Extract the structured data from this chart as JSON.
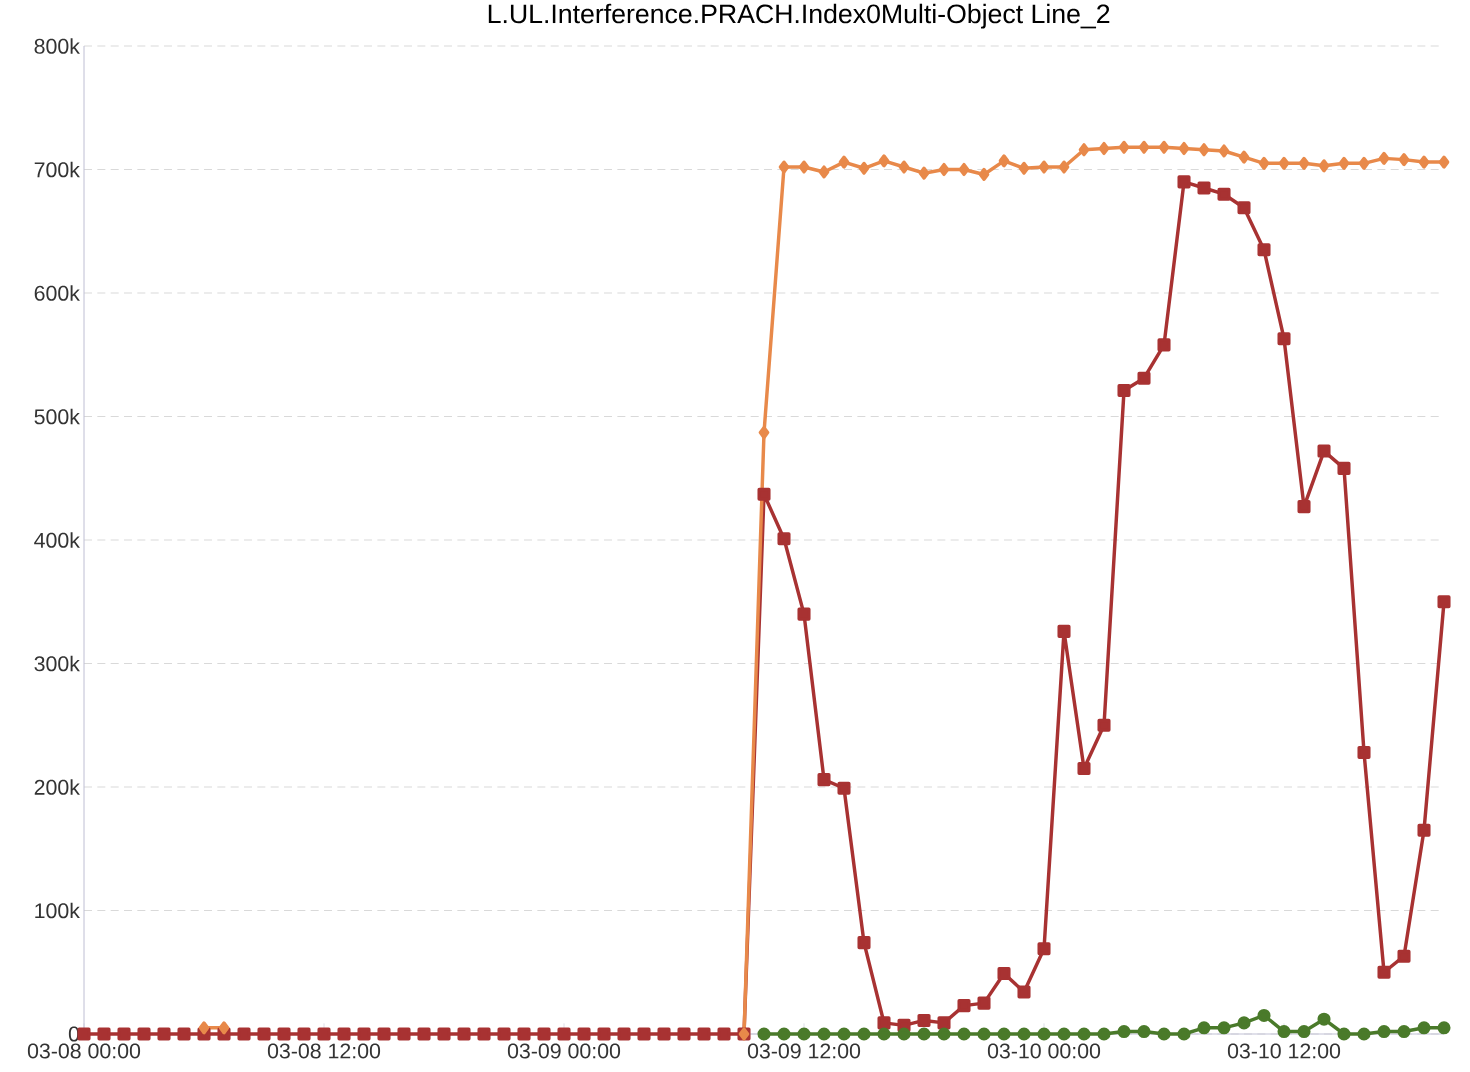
{
  "chart_data": {
    "type": "line",
    "title": "L.UL.Interference.PRACH.Index0Multi-Object Line_2",
    "categories": [
      "03-08 00:00",
      null,
      null,
      null,
      null,
      null,
      null,
      null,
      null,
      null,
      null,
      null,
      "03-08 12:00",
      null,
      null,
      null,
      null,
      null,
      null,
      null,
      null,
      null,
      null,
      null,
      "03-09 00:00",
      null,
      null,
      null,
      null,
      null,
      null,
      null,
      null,
      null,
      null,
      null,
      "03-09 12:00",
      null,
      null,
      null,
      null,
      null,
      null,
      null,
      null,
      null,
      null,
      null,
      "03-10 00:00",
      null,
      null,
      null,
      null,
      null,
      null,
      null,
      null,
      null,
      null,
      null,
      "03-10 12:00",
      null,
      null,
      null,
      null,
      null,
      null,
      null,
      null
    ],
    "ylim": [
      0,
      800000
    ],
    "yticks": [
      0,
      {
        "value": 100000,
        "label": "100k"
      },
      {
        "value": 200000,
        "label": "200k"
      },
      {
        "value": 300000,
        "label": "300k"
      },
      {
        "value": 400000,
        "label": "400k"
      },
      {
        "value": 500000,
        "label": "500k"
      },
      {
        "value": 600000,
        "label": "600k"
      },
      {
        "value": 700000,
        "label": "700k"
      },
      {
        "value": 800000,
        "label": "800k"
      }
    ],
    "grid": "y",
    "line_style": "solid",
    "series": [
      {
        "color": "#e8894a",
        "marker": "diamond",
        "values": [
          null,
          null,
          null,
          null,
          null,
          null,
          5000,
          5000,
          null,
          null,
          null,
          null,
          null,
          null,
          null,
          null,
          null,
          null,
          null,
          null,
          null,
          null,
          null,
          null,
          null,
          null,
          null,
          null,
          null,
          null,
          null,
          null,
          null,
          0,
          487000,
          702000,
          702000,
          698000,
          706000,
          701000,
          707000,
          702000,
          697000,
          700000,
          700000,
          696000,
          707000,
          701000,
          702000,
          702000,
          716000,
          717000,
          718000,
          718000,
          718000,
          717000,
          716000,
          715000,
          710000,
          705000,
          705000,
          705000,
          703000,
          705000,
          705000,
          709000,
          708000,
          706000,
          706000
        ]
      },
      {
        "color": "#a83232",
        "marker": "square",
        "values": [
          0,
          0,
          0,
          0,
          0,
          0,
          0,
          0,
          0,
          0,
          0,
          0,
          0,
          0,
          0,
          0,
          0,
          0,
          0,
          0,
          0,
          0,
          0,
          0,
          0,
          0,
          0,
          0,
          0,
          0,
          0,
          0,
          0,
          0,
          437000,
          401000,
          340000,
          206000,
          199000,
          74000,
          9000,
          7000,
          11000,
          9000,
          23000,
          25000,
          49000,
          34000,
          69000,
          326000,
          215000,
          250000,
          521000,
          531000,
          558000,
          690000,
          685000,
          680000,
          669000,
          635000,
          563000,
          427000,
          472000,
          458000,
          228000,
          50000,
          63000,
          165000,
          350000
        ]
      },
      {
        "color": "#4a7a2a",
        "marker": "circle",
        "values": [
          null,
          null,
          null,
          null,
          null,
          null,
          null,
          null,
          null,
          null,
          null,
          null,
          null,
          null,
          null,
          null,
          null,
          null,
          null,
          null,
          null,
          null,
          null,
          null,
          null,
          null,
          null,
          null,
          null,
          null,
          null,
          null,
          null,
          null,
          0,
          0,
          0,
          0,
          0,
          0,
          0,
          0,
          0,
          0,
          0,
          0,
          0,
          0,
          0,
          0,
          0,
          0,
          2000,
          2000,
          0,
          0,
          5000,
          5000,
          9000,
          15000,
          2000,
          2000,
          12000,
          0,
          0,
          2000,
          2000,
          5000,
          5000
        ]
      }
    ]
  }
}
